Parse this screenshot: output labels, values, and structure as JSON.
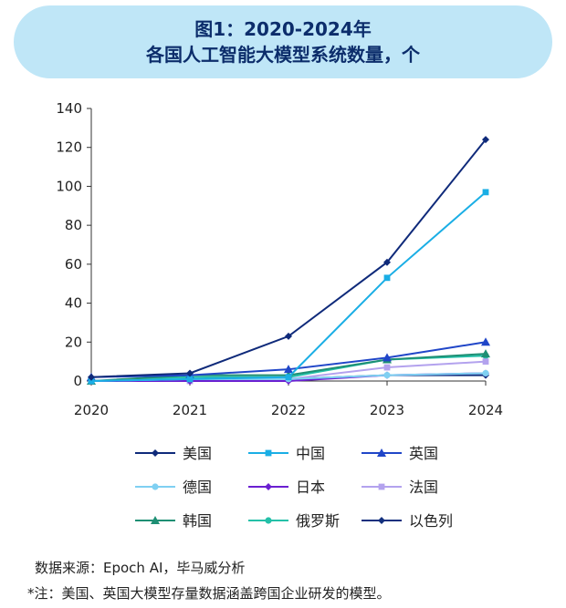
{
  "title_line1": "图1：2020-2024年",
  "title_line2": "各国人工智能大模型系统数量，个",
  "source": "数据来源：Epoch AI，毕马威分析",
  "note": "*注：美国、英国大模型存量数据涵盖跨国企业研发的模型。",
  "chart_data": {
    "type": "line",
    "title": "图1：2020-2024年 各国人工智能大模型系统数量，个",
    "xlabel": "",
    "ylabel": "",
    "x": [
      "2020",
      "2021",
      "2022",
      "2023",
      "2024"
    ],
    "ylim": [
      0,
      140
    ],
    "yticks": [
      0,
      20,
      40,
      60,
      80,
      100,
      120,
      140
    ],
    "grid": false,
    "legend_position": "bottom",
    "series": [
      {
        "name": "美国",
        "values": [
          2,
          4,
          23,
          61,
          124
        ],
        "color": "#0f2a7a",
        "marker": "diamond"
      },
      {
        "name": "中国",
        "values": [
          0,
          1,
          2,
          53,
          97
        ],
        "color": "#1aaee5",
        "marker": "square"
      },
      {
        "name": "英国",
        "values": [
          2,
          3,
          6,
          12,
          20
        ],
        "color": "#2046c8",
        "marker": "triangle"
      },
      {
        "name": "德国",
        "values": [
          0,
          1,
          1,
          3,
          4
        ],
        "color": "#7fd0f2",
        "marker": "circle"
      },
      {
        "name": "日本",
        "values": [
          0,
          0,
          0,
          3,
          4
        ],
        "color": "#6a1fd1",
        "marker": "diamond"
      },
      {
        "name": "法国",
        "values": [
          0,
          0,
          1,
          7,
          10
        ],
        "color": "#b3a2ee",
        "marker": "square"
      },
      {
        "name": "韩国",
        "values": [
          0,
          3,
          3,
          11,
          14
        ],
        "color": "#1e8f74",
        "marker": "triangle"
      },
      {
        "name": "俄罗斯",
        "values": [
          0,
          2,
          2,
          11,
          13
        ],
        "color": "#24c0a8",
        "marker": "circle"
      },
      {
        "name": "以色列",
        "values": [
          0,
          0,
          1,
          3,
          3
        ],
        "color": "#13307e",
        "marker": "diamond"
      }
    ]
  }
}
